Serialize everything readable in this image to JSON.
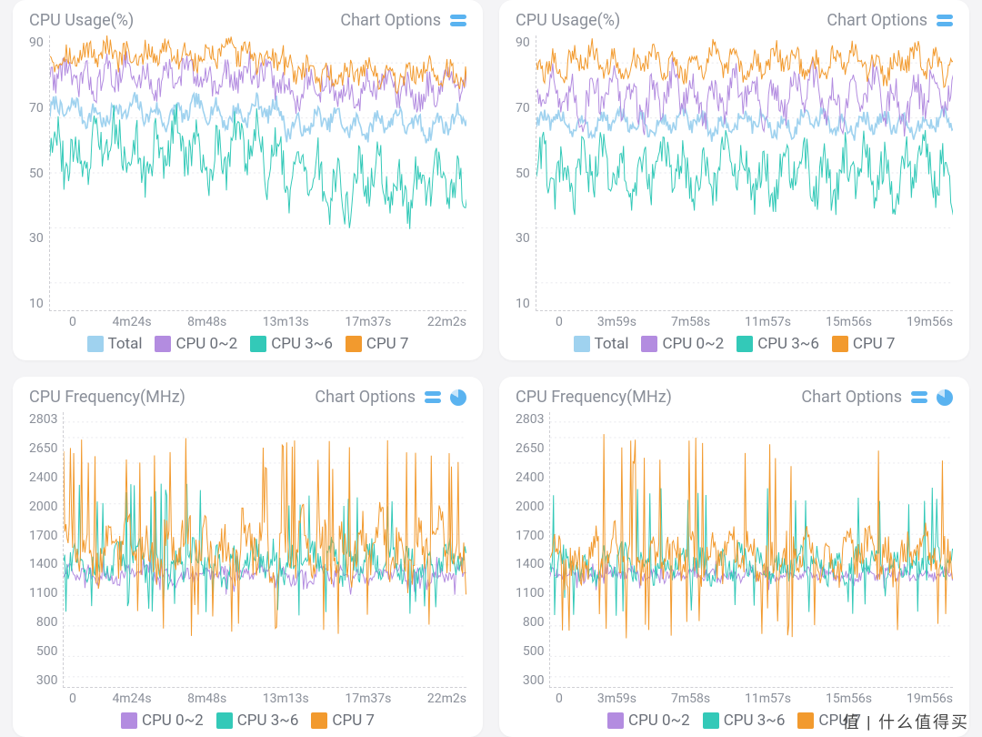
{
  "colors": {
    "total": "#9fd2ef",
    "cpu02": "#b38ce0",
    "cpu36": "#33c9b8",
    "cpu7": "#f29a2e",
    "axis_text": "#8a8f99",
    "grid": "#e6e6ea",
    "bg": "#ffffff"
  },
  "watermark": "值 | 什么值得买",
  "charts": [
    {
      "id": "usageL",
      "title": "CPU Usage(%)",
      "options_label": "Chart Options",
      "show_pie_icon": false,
      "y_ticks": [
        90,
        70,
        50,
        30,
        10
      ],
      "y_min": 0,
      "y_max": 100,
      "x_ticks": [
        "0",
        "4m24s",
        "8m48s",
        "13m13s",
        "17m37s",
        "22m2s"
      ],
      "x_max": 1322,
      "legend": [
        {
          "label": "Total",
          "color": "#9fd2ef"
        },
        {
          "label": "CPU 0~2",
          "color": "#b38ce0"
        },
        {
          "label": "CPU 3~6",
          "color": "#33c9b8"
        },
        {
          "label": "CPU 7",
          "color": "#f29a2e"
        }
      ],
      "line_width": 1.0,
      "series": [
        {
          "color": "#9fd2ef",
          "base": 72,
          "amp": 6,
          "noise": 3,
          "shift": 0,
          "break_at": 0.56,
          "break_to": 68,
          "width": 1.6
        },
        {
          "color": "#b38ce0",
          "base": 85,
          "amp": 7,
          "noise": 5,
          "shift": 0,
          "break_at": 0.56,
          "break_to": 80
        },
        {
          "color": "#33c9b8",
          "base": 58,
          "amp": 14,
          "noise": 8,
          "shift": 0,
          "break_at": 0.56,
          "break_to": 46
        },
        {
          "color": "#f29a2e",
          "base": 93,
          "amp": 5,
          "noise": 4,
          "shift": 0,
          "break_at": 0.56,
          "break_to": 86
        }
      ]
    },
    {
      "id": "usageR",
      "title": "CPU Usage(%)",
      "options_label": "Chart Options",
      "show_pie_icon": false,
      "y_ticks": [
        90,
        70,
        50,
        30,
        10
      ],
      "y_min": 0,
      "y_max": 100,
      "x_ticks": [
        "0",
        "3m59s",
        "7m58s",
        "11m57s",
        "15m56s",
        "19m56s"
      ],
      "x_max": 1196,
      "legend": [
        {
          "label": "Total",
          "color": "#9fd2ef"
        },
        {
          "label": "CPU 0~2",
          "color": "#b38ce0"
        },
        {
          "label": "CPU 3~6",
          "color": "#33c9b8"
        },
        {
          "label": "CPU 7",
          "color": "#f29a2e"
        }
      ],
      "line_width": 1.0,
      "series": [
        {
          "color": "#9fd2ef",
          "base": 68,
          "amp": 5,
          "noise": 3,
          "shift": 0,
          "width": 1.6
        },
        {
          "color": "#b38ce0",
          "base": 78,
          "amp": 12,
          "noise": 6,
          "shift": 0
        },
        {
          "color": "#33c9b8",
          "base": 50,
          "amp": 14,
          "noise": 8,
          "shift": 0
        },
        {
          "color": "#f29a2e",
          "base": 90,
          "amp": 7,
          "noise": 4,
          "shift": 0
        }
      ]
    },
    {
      "id": "freqL",
      "title": "CPU Frequency(MHz)",
      "options_label": "Chart Options",
      "show_pie_icon": true,
      "y_ticks": [
        2803,
        2650,
        2400,
        2000,
        1700,
        1400,
        1100,
        800,
        500,
        300
      ],
      "y_min": 200,
      "y_max": 2900,
      "x_ticks": [
        "0",
        "4m24s",
        "8m48s",
        "13m13s",
        "17m37s",
        "22m2s"
      ],
      "x_max": 1322,
      "legend": [
        {
          "label": "CPU 0~2",
          "color": "#b38ce0"
        },
        {
          "label": "CPU 3~6",
          "color": "#33c9b8"
        },
        {
          "label": "CPU 7",
          "color": "#f29a2e"
        }
      ],
      "line_width": 1.0,
      "series": [
        {
          "color": "#b38ce0",
          "base": 1300,
          "amp": 80,
          "noise": 60,
          "shift": 0,
          "spike_lo": 1100,
          "spike_hi": 1500,
          "spike_p": 0.06
        },
        {
          "color": "#33c9b8",
          "base": 1420,
          "amp": 200,
          "noise": 140,
          "shift": 0,
          "spike_lo": 900,
          "spike_hi": 2200,
          "spike_p": 0.1
        },
        {
          "color": "#f29a2e",
          "base": 1550,
          "amp": 350,
          "noise": 220,
          "shift": 0,
          "spike_lo": 700,
          "spike_hi": 2650,
          "spike_p": 0.14
        }
      ]
    },
    {
      "id": "freqR",
      "title": "CPU Frequency(MHz)",
      "options_label": "Chart Options",
      "show_pie_icon": true,
      "y_ticks": [
        2803,
        2650,
        2400,
        2000,
        1700,
        1400,
        1100,
        800,
        500,
        300
      ],
      "y_min": 200,
      "y_max": 2900,
      "x_ticks": [
        "0",
        "3m59s",
        "7m58s",
        "11m57s",
        "15m56s",
        "19m56s"
      ],
      "x_max": 1196,
      "legend": [
        {
          "label": "CPU 0~2",
          "color": "#b38ce0"
        },
        {
          "label": "CPU 3~6",
          "color": "#33c9b8"
        },
        {
          "label": "CPU 7",
          "color": "#f29a2e"
        }
      ],
      "line_width": 1.0,
      "series": [
        {
          "color": "#b38ce0",
          "base": 1300,
          "amp": 60,
          "noise": 50,
          "shift": 0,
          "spike_lo": 1150,
          "spike_hi": 1450,
          "spike_p": 0.04
        },
        {
          "color": "#33c9b8",
          "base": 1400,
          "amp": 160,
          "noise": 120,
          "shift": 0,
          "spike_lo": 900,
          "spike_hi": 2200,
          "spike_p": 0.08
        },
        {
          "color": "#f29a2e",
          "base": 1480,
          "amp": 260,
          "noise": 180,
          "shift": 0,
          "spike_lo": 650,
          "spike_hi": 2700,
          "spike_p": 0.11
        }
      ]
    }
  ]
}
